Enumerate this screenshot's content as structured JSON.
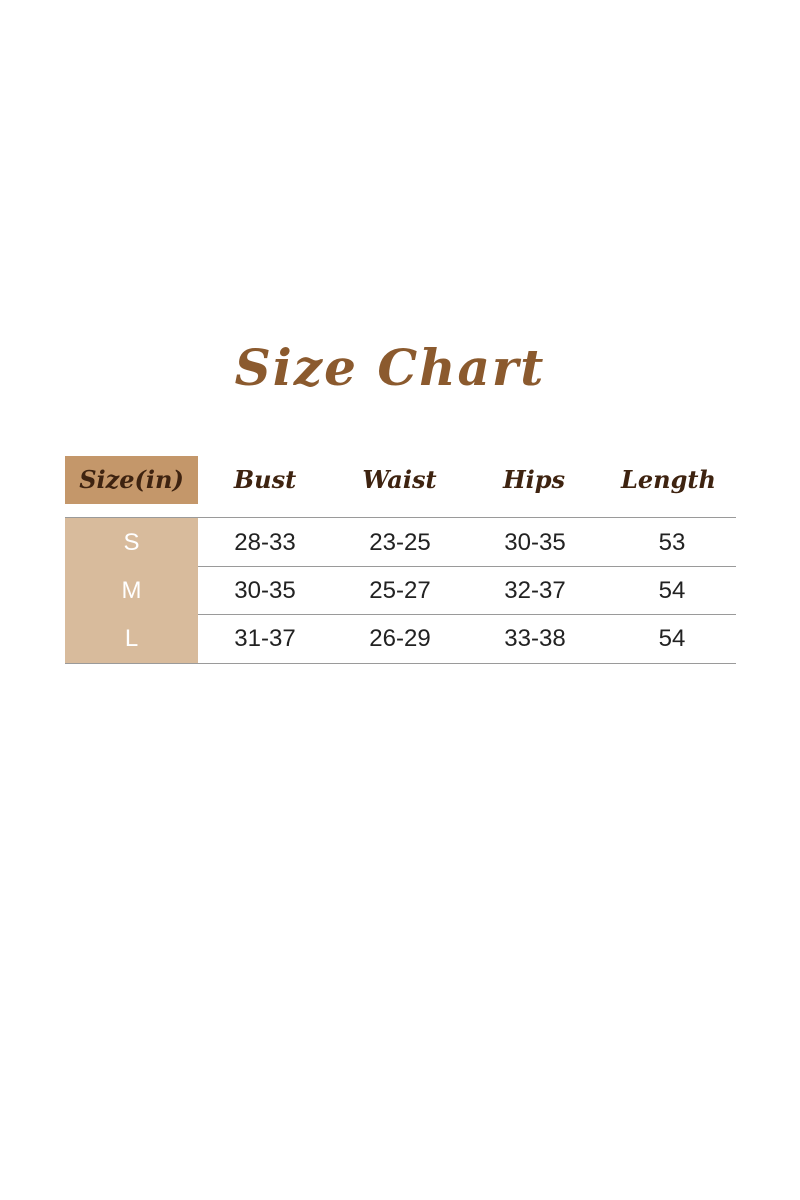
{
  "title": "Size Chart",
  "table": {
    "headers": [
      "Size(in)",
      "Bust",
      "Waist",
      "Hips",
      "Length"
    ],
    "rows": [
      {
        "size": "S",
        "bust": "28-33",
        "waist": "23-25",
        "hips": "30-35",
        "length": "53"
      },
      {
        "size": "M",
        "bust": "30-35",
        "waist": "25-27",
        "hips": "32-37",
        "length": "54"
      },
      {
        "size": "L",
        "bust": "31-37",
        "waist": "26-29",
        "hips": "33-38",
        "length": "54"
      }
    ]
  },
  "colors": {
    "title": "#8b5a2e",
    "header_cell": "#c4976a",
    "size_cells": "#d8bb9c",
    "header_text": "#3e2310"
  }
}
